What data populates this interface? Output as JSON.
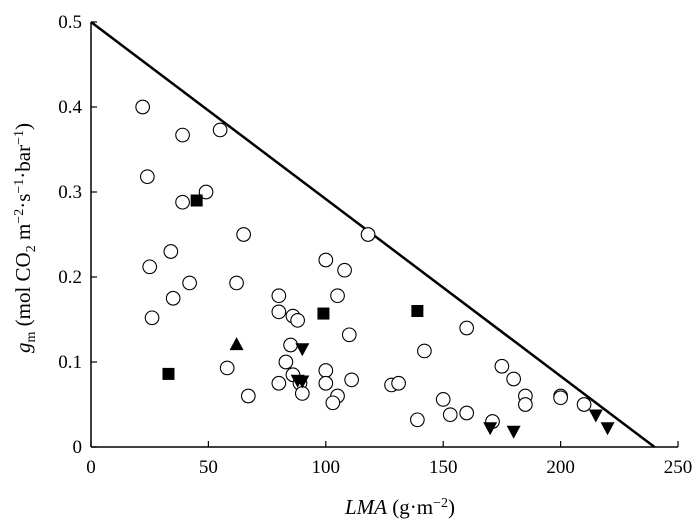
{
  "chart_data": {
    "type": "scatter",
    "xlabel": "LMA (g·m⁻²)",
    "ylabel": "gm (mol CO2 m⁻²·s⁻¹·bar⁻¹)",
    "x_ticks": [
      0,
      50,
      100,
      150,
      200,
      250
    ],
    "y_ticks": [
      0,
      0.1,
      0.2,
      0.3,
      0.4,
      0.5
    ],
    "x_tick_labels": [
      "0",
      "50",
      "100",
      "150",
      "200",
      "250"
    ],
    "y_tick_labels": [
      "0",
      "0.1",
      "0.2",
      "0.3",
      "0.4",
      "0.5"
    ],
    "xlim": [
      0,
      250
    ],
    "ylim": [
      0,
      0.5
    ],
    "grid": false,
    "boundary_line": {
      "x": [
        0,
        240
      ],
      "y": [
        0.5,
        0
      ]
    },
    "series": [
      {
        "marker": "circle",
        "points": [
          [
            22,
            0.4
          ],
          [
            39,
            0.367
          ],
          [
            55,
            0.373
          ],
          [
            24,
            0.318
          ],
          [
            49,
            0.3
          ],
          [
            39,
            0.288
          ],
          [
            65,
            0.25
          ],
          [
            118,
            0.25
          ],
          [
            34,
            0.23
          ],
          [
            25,
            0.212
          ],
          [
            42,
            0.193
          ],
          [
            62,
            0.193
          ],
          [
            100,
            0.22
          ],
          [
            108,
            0.208
          ],
          [
            35,
            0.175
          ],
          [
            80,
            0.178
          ],
          [
            105,
            0.178
          ],
          [
            26,
            0.152
          ],
          [
            80,
            0.159
          ],
          [
            86,
            0.154
          ],
          [
            88,
            0.149
          ],
          [
            110,
            0.132
          ],
          [
            160,
            0.14
          ],
          [
            85,
            0.12
          ],
          [
            142,
            0.113
          ],
          [
            83,
            0.1
          ],
          [
            58,
            0.093
          ],
          [
            100,
            0.09
          ],
          [
            175,
            0.095
          ],
          [
            86,
            0.085
          ],
          [
            180,
            0.08
          ],
          [
            80,
            0.075
          ],
          [
            89,
            0.075
          ],
          [
            100,
            0.075
          ],
          [
            111,
            0.079
          ],
          [
            128,
            0.073
          ],
          [
            131,
            0.075
          ],
          [
            67,
            0.06
          ],
          [
            90,
            0.063
          ],
          [
            105,
            0.06
          ],
          [
            103,
            0.052
          ],
          [
            185,
            0.06
          ],
          [
            200,
            0.06
          ],
          [
            150,
            0.056
          ],
          [
            185,
            0.05
          ],
          [
            210,
            0.05
          ],
          [
            200,
            0.058
          ],
          [
            160,
            0.04
          ],
          [
            153,
            0.038
          ],
          [
            139,
            0.032
          ],
          [
            171,
            0.03
          ]
        ]
      },
      {
        "marker": "square",
        "points": [
          [
            45,
            0.29
          ],
          [
            99,
            0.157
          ],
          [
            139,
            0.16
          ],
          [
            33,
            0.086
          ]
        ]
      },
      {
        "marker": "triangle-up",
        "points": [
          [
            62,
            0.121
          ]
        ]
      },
      {
        "marker": "triangle-down",
        "points": [
          [
            90,
            0.115
          ],
          [
            88,
            0.078
          ],
          [
            90,
            0.077
          ],
          [
            170,
            0.022
          ],
          [
            180,
            0.018
          ],
          [
            215,
            0.037
          ],
          [
            220,
            0.022
          ]
        ]
      }
    ]
  }
}
